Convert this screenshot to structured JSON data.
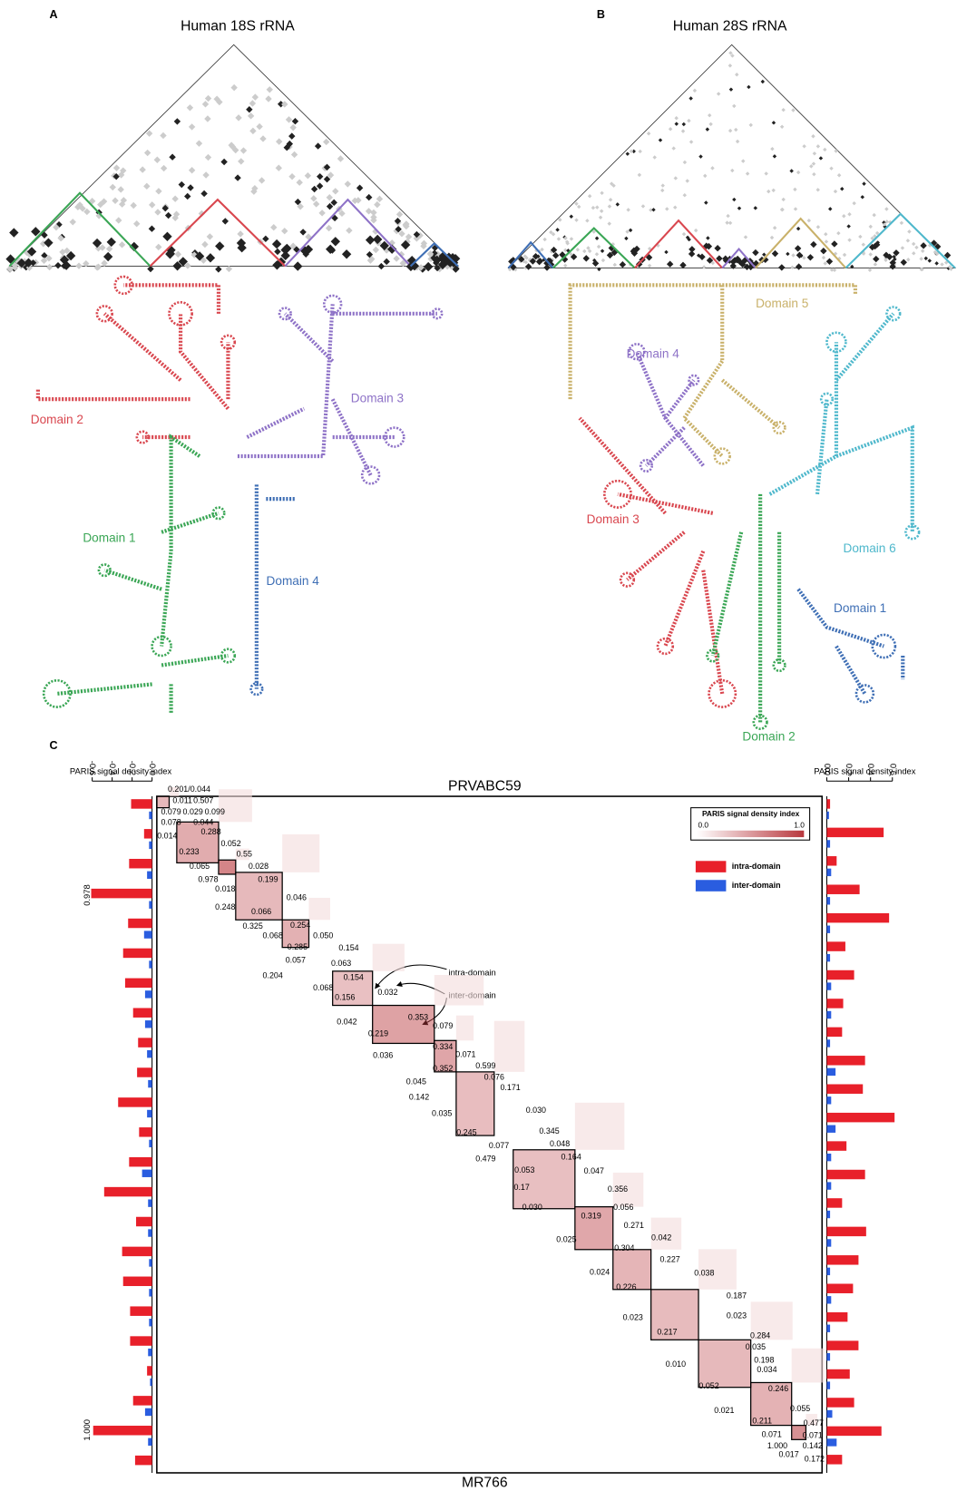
{
  "panel_a": {
    "label": "A",
    "title": "Human 18S rRNA",
    "domains": [
      "Domain 1",
      "Domain 2",
      "Domain 3",
      "Domain 4"
    ]
  },
  "panel_b": {
    "label": "B",
    "title": "Human 28S rRNA",
    "domains": [
      "Domain 1",
      "Domain 2",
      "Domain 3",
      "Domain 4",
      "Domain 5",
      "Domain 6"
    ]
  },
  "panel_c": {
    "label": "C",
    "top_title": "PRVABC59",
    "bottom_title": "MR766",
    "left_chart": {
      "axis_label": "PARIS signal density index",
      "xlim": [
        -0.6,
        0
      ],
      "xticks": [
        -0.6,
        -0.4,
        -0.2,
        {
          "value": 0,
          "label": "-0.0"
        }
      ],
      "intra": [
        -0.21,
        -0.08,
        -0.23,
        -0.61,
        -0.24,
        -0.29,
        -0.27,
        -0.19,
        -0.14,
        -0.15,
        -0.34,
        -0.13,
        -0.23,
        -0.48,
        -0.16,
        -0.3,
        -0.29,
        -0.22,
        -0.22,
        -0.05,
        -0.19,
        -0.59,
        -0.17
      ],
      "inter": [
        -0.03,
        -0.03,
        -0.05,
        -0.03,
        -0.08,
        -0.03,
        -0.07,
        -0.07,
        -0.05,
        -0.04,
        -0.05,
        -0.03,
        -0.1,
        -0.04,
        -0.04,
        -0.03,
        -0.03,
        -0.03,
        -0.04,
        -0.02,
        -0.07,
        -0.04
      ],
      "annotations": [
        "0.978",
        "1.000"
      ]
    },
    "right_chart": {
      "axis_label": "PARIS signal density index",
      "xlim": [
        0,
        0.6
      ],
      "xticks": [
        {
          "value": 0,
          "label": "0.0"
        },
        0.2,
        0.4,
        0.6
      ],
      "intra": [
        0.03,
        0.52,
        0.09,
        0.3,
        0.57,
        0.17,
        0.25,
        0.15,
        0.14,
        0.35,
        0.33,
        0.62,
        0.18,
        0.35,
        0.14,
        0.36,
        0.29,
        0.24,
        0.19,
        0.29,
        0.21,
        0.25,
        0.5,
        0.14
      ],
      "inter": [
        0.02,
        0.03,
        0.04,
        0.03,
        0.03,
        0.03,
        0.04,
        0.04,
        0.03,
        0.08,
        0.04,
        0.08,
        0.04,
        0.04,
        0.03,
        0.04,
        0.03,
        0.04,
        0.03,
        0.03,
        0.03,
        0.05,
        0.09
      ]
    },
    "legend": {
      "title": "PARIS signal density index",
      "min_label": "0.0",
      "max_label": "1.0",
      "series": [
        {
          "name": "intra-domain",
          "color": "#e8202a"
        },
        {
          "name": "inter-domain",
          "color": "#2a5de0"
        }
      ]
    },
    "annotations": [
      "intra-domain",
      "inter-domain"
    ],
    "heatmap_labels": [
      "0.201/0.044",
      "0.011",
      "0.507",
      "0.079",
      "0.029",
      "0.099",
      "0.078",
      "0.044",
      "0.014",
      "0.288",
      "0.052",
      "0.233",
      "0.55",
      "0.065",
      "0.028",
      "0.978",
      "0.199",
      "0.018",
      "0.046",
      "0.248",
      "0.066",
      "0.068",
      "0.254",
      "0.325",
      "0.050",
      "0.285",
      "0.154",
      "0.057",
      "0.063",
      "0.204",
      "0.154",
      "0.068",
      "0.032",
      "0.156",
      "0.353",
      "0.042",
      "0.079",
      "0.219",
      "0.334",
      "0.071",
      "0.036",
      "0.599",
      "0.352",
      "0.076",
      "0.045",
      "0.171",
      "0.142",
      "0.035",
      "0.030",
      "0.245",
      "0.345",
      "0.077",
      "0.048",
      "0.479",
      "0.164",
      "0.053",
      "0.047",
      "0.17",
      "0.356",
      "0.030",
      "0.056",
      "0.319",
      "0.271",
      "0.025",
      "0.042",
      "0.304",
      "0.227",
      "0.024",
      "0.038",
      "0.226",
      "0.187",
      "0.023",
      "0.023",
      "0.217",
      "0.284",
      "0.035",
      "0.198",
      "0.034",
      "0.010",
      "0.052",
      "0.246",
      "0.021",
      "0.055",
      "0.211",
      "0.477",
      "0.071",
      "0.071",
      "1.000",
      "0.142",
      "0.017",
      "0.172"
    ]
  }
}
